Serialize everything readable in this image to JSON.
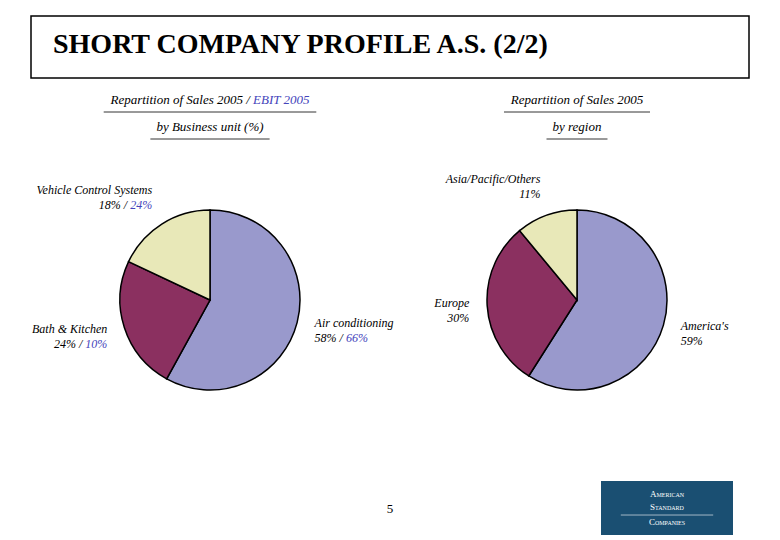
{
  "title": "SHORT COMPANY PROFILE A.S. (2/2)",
  "bg_color": "#ffffff",
  "page_number": "5",
  "logo": {
    "lines": [
      "American",
      "Standard",
      "Companies"
    ],
    "bg_color": "#1a4f72",
    "color": "#ffffff"
  },
  "chart_data": [
    {
      "type": "pie",
      "title": "Repartition of Sales 2005 / ",
      "title_highlight": "EBIT 2005",
      "subtitle": "by Business unit (%)",
      "highlight_color": "#4444bb",
      "categories": [
        "Air conditioning",
        "Bath & Kitchen",
        "Vehicle Control Systems"
      ],
      "values": [
        58,
        24,
        18
      ],
      "value_labels": [
        "58%",
        "24%",
        "18%"
      ],
      "label_separator": " / ",
      "ebit_values": [
        66,
        10,
        24
      ],
      "ebit_value_labels": [
        "66%",
        "10%",
        "24%"
      ],
      "colors": [
        "#9999cc",
        "#8b3060",
        "#e8e8b8"
      ]
    },
    {
      "type": "pie",
      "title": "Repartition of Sales 2005",
      "subtitle": "by region",
      "categories": [
        "America's",
        "Europe",
        "Asia/Pacific/Others"
      ],
      "values": [
        59,
        30,
        11
      ],
      "value_labels": [
        "59%",
        "30%",
        "11%"
      ],
      "colors": [
        "#9999cc",
        "#8b3060",
        "#e8e8b8"
      ]
    }
  ]
}
